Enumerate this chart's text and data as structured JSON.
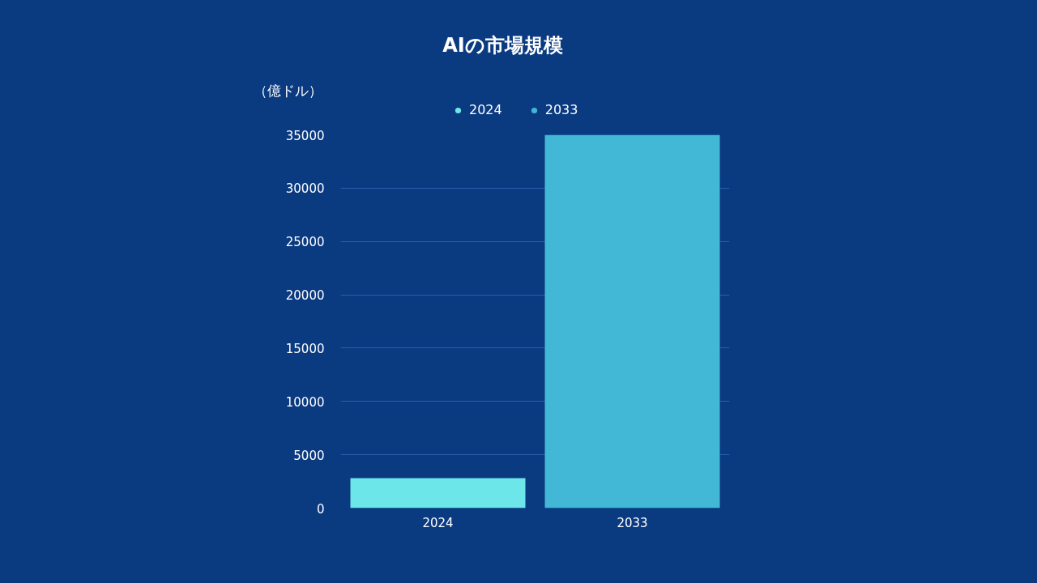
{
  "chart_data": {
    "type": "bar",
    "title": "AIの市場規模",
    "ylabel": "（億ドル）",
    "categories": [
      "2024",
      "2033"
    ],
    "series": [
      {
        "name": "2024",
        "color": "#6ce6e8",
        "values": [
          2800,
          null
        ]
      },
      {
        "name": "2033",
        "color": "#42b7d6",
        "values": [
          null,
          35000
        ]
      }
    ],
    "ylim": [
      0,
      35000
    ],
    "yticks": [
      0,
      5000,
      10000,
      15000,
      20000,
      25000,
      30000,
      35000
    ],
    "grid": "y",
    "legend": "top"
  }
}
